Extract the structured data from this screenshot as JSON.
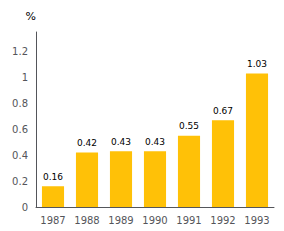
{
  "chart_data": {
    "type": "bar",
    "ylabel": "%",
    "categories": [
      "1987",
      "1988",
      "1989",
      "1990",
      "1991",
      "1992",
      "1993"
    ],
    "values": [
      0.16,
      0.42,
      0.43,
      0.43,
      0.55,
      0.67,
      1.03
    ],
    "color": "#FFC107",
    "ylim": [
      0,
      1.35
    ],
    "yticks": [
      0,
      0.2,
      0.4,
      0.6,
      0.8,
      1,
      1.2
    ],
    "grid": false,
    "data_labels": true
  }
}
